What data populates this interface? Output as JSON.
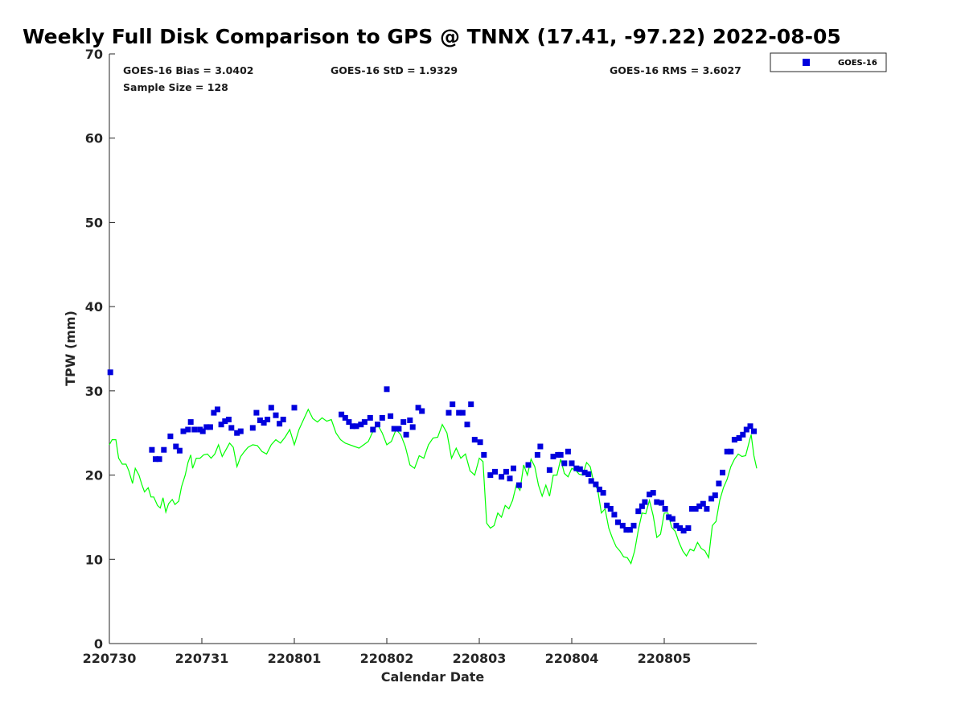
{
  "chart_data": {
    "type": "scatter",
    "title": "Weekly Full Disk Comparison to GPS @ TNNX (17.41, -97.22) 2022-08-05",
    "xlabel": "Calendar Date",
    "ylabel": "TPW (mm)",
    "xlim": [
      0,
      7
    ],
    "ylim": [
      0,
      70
    ],
    "x_ticks": [
      {
        "value": 0,
        "label": "220730"
      },
      {
        "value": 1,
        "label": "220731"
      },
      {
        "value": 2,
        "label": "220801"
      },
      {
        "value": 3,
        "label": "220802"
      },
      {
        "value": 4,
        "label": "220803"
      },
      {
        "value": 5,
        "label": "220804"
      },
      {
        "value": 6,
        "label": "220805"
      }
    ],
    "y_ticks": [
      0,
      10,
      20,
      30,
      40,
      50,
      60,
      70
    ],
    "x_units": "days since 2022-07-30 00:00",
    "grid": false,
    "legend": {
      "position": "top-right, outside plot",
      "entries": [
        "GOES-16"
      ]
    },
    "stats": {
      "bias": "GOES-16 Bias = 3.0402",
      "std": "GOES-16 StD = 1.9329",
      "rms": "GOES-16 RMS = 3.6027",
      "sample_size": "Sample Size = 128"
    },
    "series": [
      {
        "name": "GOES-16",
        "kind": "scatter",
        "marker": "square",
        "color": "#0000dd",
        "points": [
          [
            0.01,
            32.2
          ],
          [
            0.46,
            23.0
          ],
          [
            0.5,
            21.9
          ],
          [
            0.54,
            21.9
          ],
          [
            0.59,
            23.0
          ],
          [
            0.66,
            24.6
          ],
          [
            0.72,
            23.4
          ],
          [
            0.76,
            22.9
          ],
          [
            0.8,
            25.2
          ],
          [
            0.85,
            25.4
          ],
          [
            0.88,
            26.3
          ],
          [
            0.92,
            25.4
          ],
          [
            0.98,
            25.4
          ],
          [
            1.01,
            25.2
          ],
          [
            1.05,
            25.7
          ],
          [
            1.09,
            25.7
          ],
          [
            1.13,
            27.4
          ],
          [
            1.17,
            27.8
          ],
          [
            1.21,
            26.0
          ],
          [
            1.25,
            26.4
          ],
          [
            1.29,
            26.6
          ],
          [
            1.32,
            25.6
          ],
          [
            1.38,
            25.0
          ],
          [
            1.42,
            25.2
          ],
          [
            1.55,
            25.6
          ],
          [
            1.59,
            27.4
          ],
          [
            1.63,
            26.5
          ],
          [
            1.67,
            26.2
          ],
          [
            1.71,
            26.6
          ],
          [
            1.75,
            28.0
          ],
          [
            1.8,
            27.1
          ],
          [
            1.84,
            26.1
          ],
          [
            1.88,
            26.6
          ],
          [
            2.0,
            28.0
          ],
          [
            2.51,
            27.2
          ],
          [
            2.55,
            26.8
          ],
          [
            2.59,
            26.3
          ],
          [
            2.63,
            25.8
          ],
          [
            2.67,
            25.8
          ],
          [
            2.72,
            26.0
          ],
          [
            2.76,
            26.3
          ],
          [
            2.82,
            26.8
          ],
          [
            2.85,
            25.4
          ],
          [
            2.9,
            26.0
          ],
          [
            2.95,
            26.8
          ],
          [
            3.0,
            30.2
          ],
          [
            3.04,
            27.0
          ],
          [
            3.08,
            25.5
          ],
          [
            3.13,
            25.5
          ],
          [
            3.18,
            26.3
          ],
          [
            3.21,
            24.8
          ],
          [
            3.25,
            26.5
          ],
          [
            3.28,
            25.7
          ],
          [
            3.34,
            28.0
          ],
          [
            3.38,
            27.6
          ],
          [
            3.67,
            27.4
          ],
          [
            3.71,
            28.4
          ],
          [
            3.78,
            27.4
          ],
          [
            3.82,
            27.4
          ],
          [
            3.87,
            26.0
          ],
          [
            3.91,
            28.4
          ],
          [
            3.95,
            24.2
          ],
          [
            4.01,
            23.9
          ],
          [
            4.05,
            22.4
          ],
          [
            4.12,
            20.0
          ],
          [
            4.17,
            20.4
          ],
          [
            4.24,
            19.8
          ],
          [
            4.29,
            20.4
          ],
          [
            4.33,
            19.6
          ],
          [
            4.37,
            20.8
          ],
          [
            4.43,
            18.8
          ],
          [
            4.53,
            21.2
          ],
          [
            4.63,
            22.4
          ],
          [
            4.66,
            23.4
          ],
          [
            4.76,
            20.6
          ],
          [
            4.8,
            22.2
          ],
          [
            4.85,
            22.4
          ],
          [
            4.88,
            22.4
          ],
          [
            4.92,
            21.4
          ],
          [
            4.96,
            22.8
          ],
          [
            5.0,
            21.4
          ],
          [
            5.05,
            20.8
          ],
          [
            5.09,
            20.7
          ],
          [
            5.14,
            20.3
          ],
          [
            5.18,
            20.1
          ],
          [
            5.21,
            19.3
          ],
          [
            5.26,
            18.9
          ],
          [
            5.3,
            18.3
          ],
          [
            5.34,
            17.9
          ],
          [
            5.38,
            16.4
          ],
          [
            5.42,
            16.0
          ],
          [
            5.46,
            15.3
          ],
          [
            5.5,
            14.4
          ],
          [
            5.55,
            14.0
          ],
          [
            5.59,
            13.5
          ],
          [
            5.63,
            13.5
          ],
          [
            5.67,
            14.0
          ],
          [
            5.72,
            15.7
          ],
          [
            5.76,
            16.3
          ],
          [
            5.79,
            16.8
          ],
          [
            5.84,
            17.7
          ],
          [
            5.88,
            17.9
          ],
          [
            5.92,
            16.8
          ],
          [
            5.97,
            16.7
          ],
          [
            6.01,
            16.0
          ],
          [
            6.05,
            15.0
          ],
          [
            6.09,
            14.8
          ],
          [
            6.13,
            14.0
          ],
          [
            6.17,
            13.7
          ],
          [
            6.21,
            13.4
          ],
          [
            6.26,
            13.7
          ],
          [
            6.3,
            16.0
          ],
          [
            6.34,
            16.0
          ],
          [
            6.38,
            16.3
          ],
          [
            6.42,
            16.6
          ],
          [
            6.46,
            16.0
          ],
          [
            6.51,
            17.2
          ],
          [
            6.55,
            17.6
          ],
          [
            6.59,
            19.0
          ],
          [
            6.63,
            20.3
          ],
          [
            6.68,
            22.8
          ],
          [
            6.72,
            22.8
          ],
          [
            6.76,
            24.2
          ],
          [
            6.81,
            24.4
          ],
          [
            6.85,
            24.8
          ],
          [
            6.89,
            25.4
          ],
          [
            6.93,
            25.8
          ],
          [
            6.97,
            25.2
          ]
        ]
      },
      {
        "name": "GPS",
        "kind": "line",
        "color": "#00ff00",
        "points": [
          [
            0.0,
            23.6
          ],
          [
            0.03,
            24.2
          ],
          [
            0.07,
            24.2
          ],
          [
            0.1,
            22.0
          ],
          [
            0.14,
            21.3
          ],
          [
            0.18,
            21.3
          ],
          [
            0.21,
            20.5
          ],
          [
            0.25,
            19.0
          ],
          [
            0.28,
            20.8
          ],
          [
            0.32,
            20.0
          ],
          [
            0.35,
            18.9
          ],
          [
            0.38,
            18.0
          ],
          [
            0.42,
            18.5
          ],
          [
            0.45,
            17.4
          ],
          [
            0.48,
            17.4
          ],
          [
            0.52,
            16.4
          ],
          [
            0.55,
            16.1
          ],
          [
            0.58,
            17.3
          ],
          [
            0.61,
            15.6
          ],
          [
            0.64,
            16.6
          ],
          [
            0.68,
            17.1
          ],
          [
            0.71,
            16.5
          ],
          [
            0.75,
            16.9
          ],
          [
            0.78,
            18.6
          ],
          [
            0.82,
            20.0
          ],
          [
            0.85,
            21.5
          ],
          [
            0.88,
            22.4
          ],
          [
            0.9,
            20.8
          ],
          [
            0.94,
            22.0
          ],
          [
            0.98,
            22.0
          ],
          [
            1.02,
            22.4
          ],
          [
            1.06,
            22.5
          ],
          [
            1.1,
            22.0
          ],
          [
            1.14,
            22.5
          ],
          [
            1.18,
            23.6
          ],
          [
            1.22,
            22.2
          ],
          [
            1.26,
            23.0
          ],
          [
            1.3,
            23.8
          ],
          [
            1.34,
            23.3
          ],
          [
            1.38,
            21.0
          ],
          [
            1.42,
            22.2
          ],
          [
            1.46,
            22.8
          ],
          [
            1.5,
            23.3
          ],
          [
            1.55,
            23.6
          ],
          [
            1.6,
            23.5
          ],
          [
            1.65,
            22.8
          ],
          [
            1.7,
            22.5
          ],
          [
            1.75,
            23.6
          ],
          [
            1.8,
            24.2
          ],
          [
            1.85,
            23.8
          ],
          [
            1.9,
            24.5
          ],
          [
            1.95,
            25.4
          ],
          [
            2.0,
            23.6
          ],
          [
            2.05,
            25.4
          ],
          [
            2.1,
            26.6
          ],
          [
            2.15,
            27.8
          ],
          [
            2.2,
            26.7
          ],
          [
            2.25,
            26.3
          ],
          [
            2.3,
            26.8
          ],
          [
            2.35,
            26.4
          ],
          [
            2.4,
            26.6
          ],
          [
            2.45,
            25.0
          ],
          [
            2.5,
            24.2
          ],
          [
            2.55,
            23.8
          ],
          [
            2.6,
            23.6
          ],
          [
            2.65,
            23.4
          ],
          [
            2.7,
            23.2
          ],
          [
            2.75,
            23.6
          ],
          [
            2.8,
            24.0
          ],
          [
            2.85,
            25.2
          ],
          [
            2.9,
            26.0
          ],
          [
            2.95,
            25.0
          ],
          [
            3.0,
            23.6
          ],
          [
            3.05,
            24.0
          ],
          [
            3.1,
            25.4
          ],
          [
            3.15,
            24.8
          ],
          [
            3.2,
            23.4
          ],
          [
            3.25,
            21.2
          ],
          [
            3.3,
            20.8
          ],
          [
            3.35,
            22.3
          ],
          [
            3.4,
            22.0
          ],
          [
            3.45,
            23.6
          ],
          [
            3.5,
            24.4
          ],
          [
            3.55,
            24.5
          ],
          [
            3.6,
            26.0
          ],
          [
            3.65,
            25.0
          ],
          [
            3.7,
            22.0
          ],
          [
            3.75,
            23.2
          ],
          [
            3.8,
            22.0
          ],
          [
            3.85,
            22.5
          ],
          [
            3.9,
            20.5
          ],
          [
            3.95,
            20.0
          ],
          [
            4.0,
            22.0
          ],
          [
            4.04,
            21.6
          ],
          [
            4.08,
            14.3
          ],
          [
            4.12,
            13.7
          ],
          [
            4.16,
            14.0
          ],
          [
            4.2,
            15.5
          ],
          [
            4.24,
            15.0
          ],
          [
            4.28,
            16.4
          ],
          [
            4.32,
            16.0
          ],
          [
            4.36,
            17.0
          ],
          [
            4.4,
            18.8
          ],
          [
            4.44,
            18.2
          ],
          [
            4.48,
            21.2
          ],
          [
            4.52,
            20.0
          ],
          [
            4.56,
            21.9
          ],
          [
            4.6,
            21.0
          ],
          [
            4.64,
            18.8
          ],
          [
            4.68,
            17.5
          ],
          [
            4.72,
            18.8
          ],
          [
            4.76,
            17.5
          ],
          [
            4.8,
            20.0
          ],
          [
            4.84,
            20.0
          ],
          [
            4.88,
            21.9
          ],
          [
            4.92,
            20.2
          ],
          [
            4.96,
            19.8
          ],
          [
            5.0,
            20.8
          ],
          [
            5.04,
            20.6
          ],
          [
            5.08,
            20.1
          ],
          [
            5.12,
            20.0
          ],
          [
            5.16,
            21.5
          ],
          [
            5.2,
            21.0
          ],
          [
            5.24,
            19.0
          ],
          [
            5.28,
            18.3
          ],
          [
            5.32,
            15.5
          ],
          [
            5.36,
            16.0
          ],
          [
            5.4,
            13.7
          ],
          [
            5.44,
            12.5
          ],
          [
            5.48,
            11.5
          ],
          [
            5.52,
            11.0
          ],
          [
            5.56,
            10.3
          ],
          [
            5.6,
            10.2
          ],
          [
            5.64,
            9.5
          ],
          [
            5.68,
            11.0
          ],
          [
            5.72,
            13.5
          ],
          [
            5.76,
            15.5
          ],
          [
            5.8,
            15.4
          ],
          [
            5.84,
            17.0
          ],
          [
            5.88,
            15.2
          ],
          [
            5.92,
            12.6
          ],
          [
            5.96,
            13.0
          ],
          [
            6.0,
            15.5
          ],
          [
            6.04,
            15.5
          ],
          [
            6.08,
            13.8
          ],
          [
            6.12,
            13.3
          ],
          [
            6.16,
            12.0
          ],
          [
            6.2,
            11.0
          ],
          [
            6.24,
            10.4
          ],
          [
            6.28,
            11.2
          ],
          [
            6.32,
            11.0
          ],
          [
            6.36,
            12.0
          ],
          [
            6.4,
            11.3
          ],
          [
            6.44,
            11.0
          ],
          [
            6.48,
            10.2
          ],
          [
            6.52,
            14.0
          ],
          [
            6.56,
            14.5
          ],
          [
            6.6,
            17.0
          ],
          [
            6.64,
            18.5
          ],
          [
            6.68,
            19.5
          ],
          [
            6.72,
            21.0
          ],
          [
            6.76,
            21.9
          ],
          [
            6.8,
            22.5
          ],
          [
            6.84,
            22.2
          ],
          [
            6.88,
            22.3
          ],
          [
            6.92,
            24.0
          ],
          [
            6.94,
            24.8
          ],
          [
            6.97,
            22.3
          ],
          [
            7.0,
            20.8
          ]
        ]
      }
    ]
  }
}
